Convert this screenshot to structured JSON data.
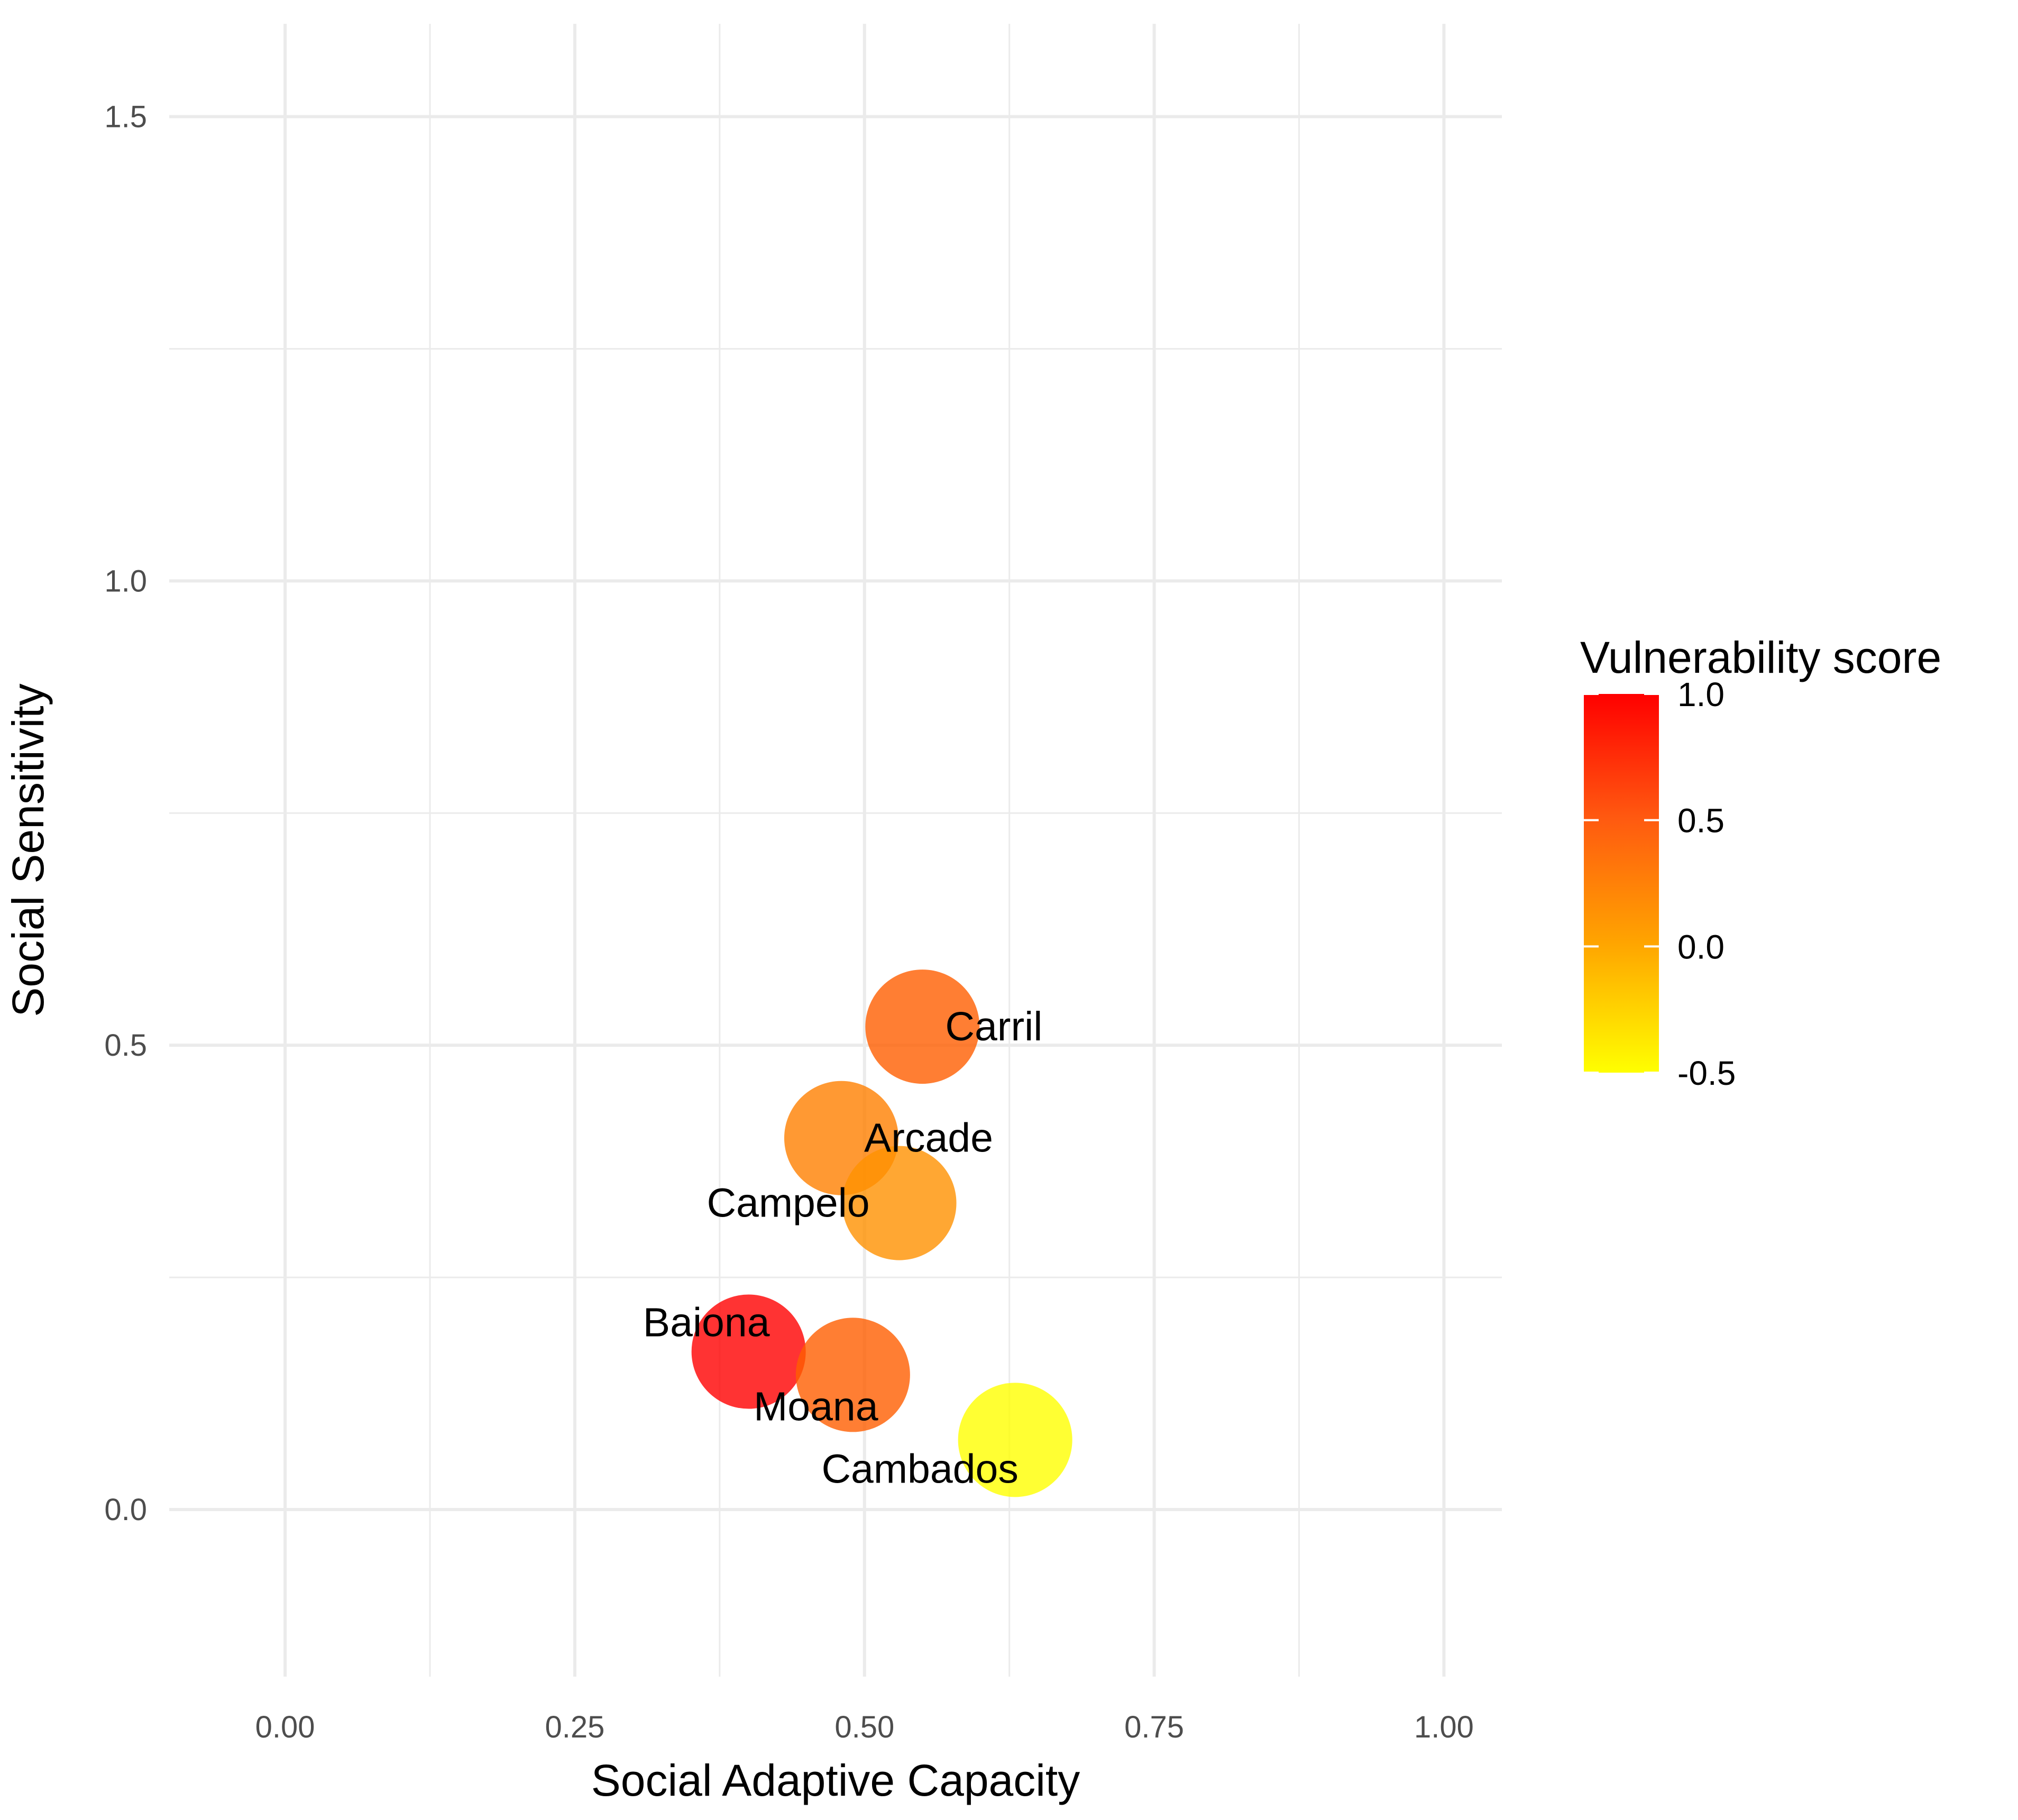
{
  "chart_data": {
    "type": "scatter",
    "title": "",
    "xlabel": "Social Adaptive Capacity",
    "ylabel": "Social Sensitivity",
    "xlim": [
      -0.1,
      1.05
    ],
    "ylim": [
      -0.18,
      1.6
    ],
    "x_ticks": [
      0.0,
      0.25,
      0.5,
      0.75,
      1.0
    ],
    "x_tick_labels": [
      "0.00",
      "0.25",
      "0.50",
      "0.75",
      "1.00"
    ],
    "y_ticks": [
      0.0,
      0.5,
      1.0,
      1.5
    ],
    "y_tick_labels": [
      "0.0",
      "0.5",
      "1.0",
      "1.5"
    ],
    "grid": true,
    "points": [
      {
        "label": "Carril",
        "x": 0.55,
        "y": 0.52,
        "score": 0.45
      },
      {
        "label": "Arcade",
        "x": 0.48,
        "y": 0.4,
        "score": 0.25
      },
      {
        "label": "Campelo",
        "x": 0.53,
        "y": 0.33,
        "score": 0.15
      },
      {
        "label": "Baiona",
        "x": 0.4,
        "y": 0.17,
        "score": 1.0
      },
      {
        "label": "Moana",
        "x": 0.49,
        "y": 0.145,
        "score": 0.45
      },
      {
        "label": "Cambados",
        "x": 0.63,
        "y": 0.075,
        "score": -0.5
      }
    ],
    "legend": {
      "title": "Vulnerability score",
      "placement": "right",
      "ticks": [
        1.0,
        0.5,
        0.0,
        -0.5
      ],
      "tick_labels": [
        "1.0",
        "0.5",
        "0.0",
        "-0.5"
      ],
      "range": [
        -0.5,
        1.0
      ],
      "color_low": "#ffff00",
      "color_high": "#ff0000"
    },
    "grid_color": "#ebebeb"
  }
}
